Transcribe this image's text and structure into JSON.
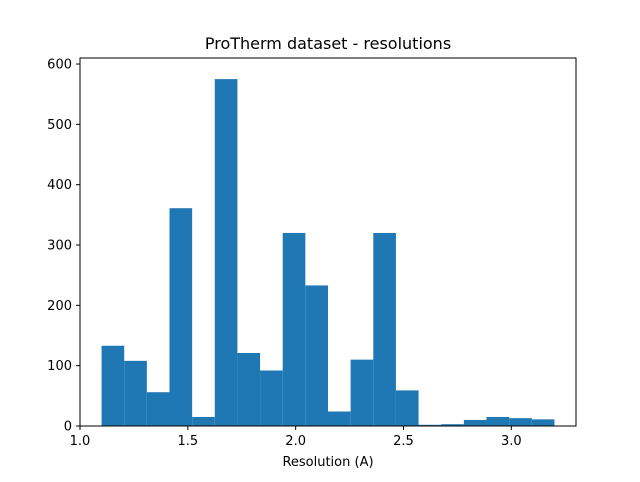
{
  "chart_data": {
    "type": "bar",
    "title": "ProTherm dataset - resolutions",
    "xlabel": "Resolution (A)",
    "ylabel": "",
    "xlim": [
      1.0,
      3.3
    ],
    "ylim": [
      0,
      610
    ],
    "grid": false,
    "legend": "none",
    "x_ticks": [
      {
        "value": 1.0,
        "label": "1.0"
      },
      {
        "value": 1.5,
        "label": "1.5"
      },
      {
        "value": 2.0,
        "label": "2.0"
      },
      {
        "value": 2.5,
        "label": "2.5"
      },
      {
        "value": 3.0,
        "label": "3.0"
      }
    ],
    "y_ticks": [
      {
        "value": 0,
        "label": "0"
      },
      {
        "value": 100,
        "label": "100"
      },
      {
        "value": 200,
        "label": "200"
      },
      {
        "value": 300,
        "label": "300"
      },
      {
        "value": 400,
        "label": "400"
      },
      {
        "value": 500,
        "label": "500"
      },
      {
        "value": 600,
        "label": "600"
      }
    ],
    "bin_edges": [
      1.1,
      1.205,
      1.31,
      1.415,
      1.52,
      1.625,
      1.73,
      1.835,
      1.94,
      2.045,
      2.15,
      2.255,
      2.36,
      2.465,
      2.57,
      2.675,
      2.78,
      2.885,
      2.99,
      3.095,
      3.2
    ],
    "values": [
      133,
      108,
      56,
      361,
      15,
      575,
      121,
      92,
      320,
      233,
      24,
      110,
      320,
      59,
      2,
      3,
      10,
      15,
      13,
      11
    ],
    "series": [
      {
        "values": [
          133,
          108,
          56,
          361,
          15,
          575,
          121,
          92,
          320,
          233,
          24,
          110,
          320,
          59,
          2,
          3,
          10,
          15,
          13,
          11
        ],
        "color": "#1f77b4"
      }
    ]
  }
}
